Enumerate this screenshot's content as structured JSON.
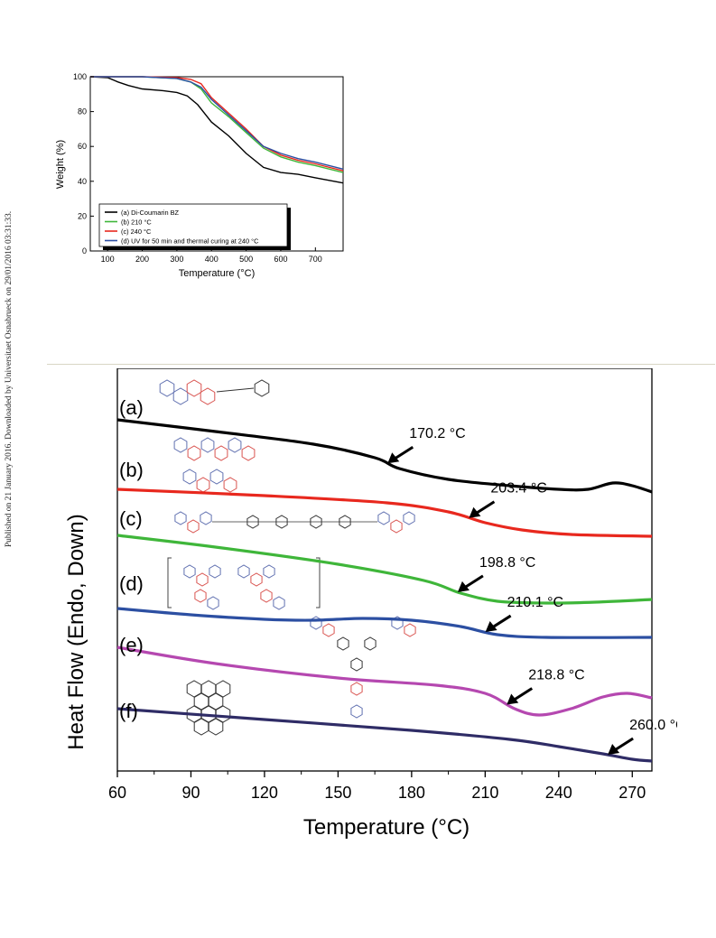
{
  "page": {
    "watermark": "Published on 21 January 2016. Downloaded by Universitaet Osnabrueck on 29/01/2016 03:31:33."
  },
  "colors": {
    "black": "#000000",
    "green": "#3fb63a",
    "red": "#e8281e",
    "blue": "#2c4fa2",
    "magenta": "#b548b0",
    "navy": "#2f2c66",
    "structure_red": "#d9534f",
    "structure_blue": "#6070b0"
  },
  "chart_data": [
    {
      "type": "line",
      "title": "",
      "xlabel": "Temperature (°C)",
      "ylabel": "Weight (%)",
      "xlim": [
        50,
        780
      ],
      "ylim": [
        0,
        100
      ],
      "xticks": [
        100,
        200,
        300,
        400,
        500,
        600,
        700
      ],
      "yticks": [
        0,
        20,
        40,
        60,
        80,
        100
      ],
      "grid": false,
      "legend": "bottom-left",
      "series": [
        {
          "name": "(a) Di-Coumarin BZ",
          "color": "#000000",
          "x": [
            50,
            100,
            130,
            160,
            200,
            260,
            300,
            330,
            360,
            400,
            450,
            500,
            550,
            600,
            650,
            700,
            780
          ],
          "y": [
            100,
            99.5,
            97,
            95,
            93,
            92,
            91,
            89,
            84,
            74,
            66,
            56,
            48,
            45,
            44,
            42,
            39
          ]
        },
        {
          "name": "(b) 210 °C",
          "color": "#3fb63a",
          "x": [
            50,
            200,
            300,
            340,
            370,
            400,
            450,
            500,
            550,
            600,
            650,
            700,
            780
          ],
          "y": [
            100,
            100,
            99,
            97,
            93,
            85,
            77,
            68,
            59,
            54,
            51,
            49,
            45
          ]
        },
        {
          "name": "(c)  240 °C",
          "color": "#e8281e",
          "x": [
            50,
            200,
            300,
            340,
            370,
            400,
            450,
            500,
            550,
            600,
            650,
            700,
            780
          ],
          "y": [
            100,
            100,
            99.5,
            98.5,
            96,
            88,
            79,
            70,
            60,
            55,
            52,
            50,
            46
          ]
        },
        {
          "name": "(d) UV for 50 min and thermal curing at 240 °C",
          "color": "#2c4fa2",
          "x": [
            50,
            200,
            300,
            340,
            370,
            400,
            450,
            500,
            550,
            600,
            650,
            700,
            780
          ],
          "y": [
            100,
            100,
            99,
            97,
            94,
            87,
            78,
            69,
            60,
            56,
            53,
            51,
            47
          ]
        }
      ]
    },
    {
      "type": "line",
      "title": "",
      "xlabel": "Temperature (°C)",
      "ylabel": "Heat Flow (Endo, Down)",
      "xlim": [
        60,
        278
      ],
      "xticks": [
        60,
        90,
        120,
        150,
        180,
        210,
        240,
        270
      ],
      "yticks": [],
      "grid": false,
      "series": [
        {
          "name": "(a)",
          "color": "#000000",
          "annotation": "170.2 °C",
          "arrow_x": 170.2,
          "x": [
            60,
            100,
            140,
            165,
            175,
            195,
            220,
            240,
            252,
            262,
            270,
            278
          ],
          "y": [
            0.0,
            6.5,
            13.5,
            21.0,
            27.0,
            33.0,
            36.5,
            38.5,
            38.5,
            35.0,
            36.5,
            40.0
          ]
        },
        {
          "name": "(b)",
          "color": "#e8281e",
          "annotation": "203.4 °C",
          "arrow_x": 203.4,
          "x": [
            60,
            120,
            170,
            195,
            210,
            225,
            245,
            278
          ],
          "y": [
            38.5,
            42.0,
            46.0,
            51.0,
            57.0,
            61.0,
            63.5,
            64.5
          ]
        },
        {
          "name": "(c)",
          "color": "#3fb63a",
          "annotation": "198.8 °C",
          "arrow_x": 198.8,
          "x": [
            60,
            100,
            150,
            185,
            200,
            215,
            235,
            255,
            278
          ],
          "y": [
            64.0,
            70.5,
            80.0,
            89.0,
            96.0,
            100.5,
            101.5,
            101.0,
            99.5
          ]
        },
        {
          "name": "(d)",
          "color": "#2c4fa2",
          "annotation": "210.1 °C",
          "arrow_x": 210.1,
          "x": [
            60,
            90,
            120,
            140,
            160,
            180,
            200,
            215,
            235,
            278
          ],
          "y": [
            104.5,
            108.0,
            110.5,
            111.0,
            110.0,
            111.0,
            114.5,
            119.0,
            120.5,
            120.5
          ]
        },
        {
          "name": "(e)",
          "color": "#b548b0",
          "annotation": "218.8 °C",
          "arrow_x": 218.8,
          "x": [
            60,
            100,
            150,
            190,
            210,
            222,
            232,
            245,
            258,
            268,
            278
          ],
          "y": [
            126.0,
            135.0,
            143.0,
            147.0,
            151.5,
            160.0,
            163.5,
            160.0,
            153.5,
            151.5,
            154.0
          ]
        },
        {
          "name": "(f)",
          "color": "#2f2c66",
          "annotation": "260.0 °C",
          "arrow_x": 260.0,
          "x": [
            60,
            120,
            180,
            220,
            240,
            258,
            270,
            278
          ],
          "y": [
            160.0,
            166.0,
            172.0,
            177.0,
            181.0,
            185.0,
            188.0,
            189.0
          ]
        }
      ]
    }
  ]
}
